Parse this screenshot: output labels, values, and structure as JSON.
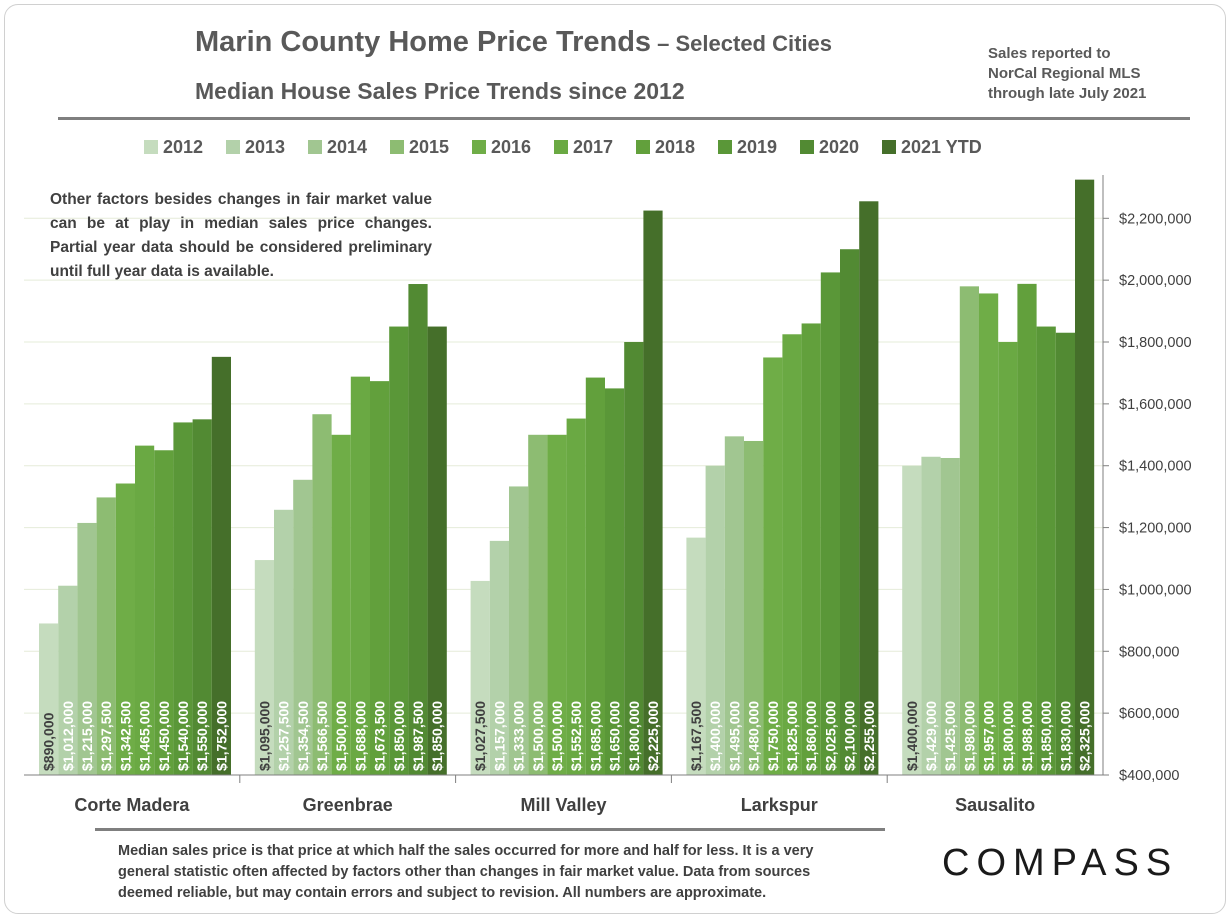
{
  "header": {
    "title_main": "Marin County Home Price Trends",
    "title_sub": " – Selected Cities",
    "subtitle": "Median House Sales Price Trends since 2012"
  },
  "source_note": {
    "lines": [
      "Sales reported to",
      "NorCal Regional MLS",
      "through late July 2021"
    ]
  },
  "annotation": "Other factors besides changes in fair market value can be at play in median sales price changes. Partial year data should be considered preliminary until full year data is available.",
  "footnote": "Median sales price is that price at which half the sales occurred for more and half for less. It is a very general statistic often affected by factors other than changes in fair market value. Data from sources deemed reliable, but may contain errors and subject to revision. All numbers are approximate.",
  "logo": "COMPASS",
  "colors": {
    "series": [
      "#c5dcbe",
      "#b3d1aa",
      "#a1c691",
      "#8dbc72",
      "#6fad47",
      "#6aa943",
      "#62a03c",
      "#5a9738",
      "#528a33",
      "#456f2a"
    ],
    "text": "#404040",
    "axis": "#7f7f7f",
    "grid": "#e5ecd9"
  },
  "chart_data": {
    "type": "bar",
    "categories": [
      "Corte Madera",
      "Greenbrae",
      "Mill Valley",
      "Larkspur",
      "Sausalito"
    ],
    "series": [
      {
        "name": "2012",
        "values": [
          890000,
          1095000,
          1027500,
          1167500,
          1400000
        ]
      },
      {
        "name": "2013",
        "values": [
          1012000,
          1257500,
          1157000,
          1400000,
          1429000
        ]
      },
      {
        "name": "2014",
        "values": [
          1215000,
          1354500,
          1333000,
          1495000,
          1425000
        ]
      },
      {
        "name": "2015",
        "values": [
          1297500,
          1566500,
          1500000,
          1480000,
          1980000
        ]
      },
      {
        "name": "2016",
        "values": [
          1342500,
          1500000,
          1500000,
          1750000,
          1957000
        ]
      },
      {
        "name": "2017",
        "values": [
          1465000,
          1688000,
          1552500,
          1825000,
          1800000
        ]
      },
      {
        "name": "2018",
        "values": [
          1450000,
          1673500,
          1685000,
          1860000,
          1988000
        ]
      },
      {
        "name": "2019",
        "values": [
          1540000,
          1850000,
          1650000,
          2025000,
          1850000
        ]
      },
      {
        "name": "2020",
        "values": [
          1550000,
          1987500,
          1800000,
          2100000,
          1830000
        ]
      },
      {
        "name": "2021 YTD",
        "values": [
          1752000,
          1850000,
          2225000,
          2255000,
          2325000
        ]
      }
    ],
    "data_labels": [
      [
        "$890,000",
        "$1,012,000",
        "$1,215,000",
        "$1,297,500",
        "$1,342,500",
        "$1,465,000",
        "$1,450,000",
        "$1,540,000",
        "$1,550,000",
        "$1,752,000"
      ],
      [
        "$1,095,000",
        "$1,257,500",
        "$1,354,500",
        "$1,566,500",
        "$1,500,000",
        "$1,688,000",
        "$1,673,500",
        "$1,850,000",
        "$1,987,500",
        "$1,850,000"
      ],
      [
        "$1,027,500",
        "$1,157,000",
        "$1,333,000",
        "$1,500,000",
        "$1,500,000",
        "$1,552,500",
        "$1,685,000",
        "$1,650,000",
        "$1,800,000",
        "$2,225,000"
      ],
      [
        "$1,167,500",
        "$1,400,000",
        "$1,495,000",
        "$1,480,000",
        "$1,750,000",
        "$1,825,000",
        "$1,860,000",
        "$2,025,000",
        "$2,100,000",
        "$2,255,000"
      ],
      [
        "$1,400,000",
        "$1,429,000",
        "$1,425,000",
        "$1,980,000",
        "$1,957,000",
        "$1,800,000",
        "$1,988,000",
        "$1,850,000",
        "$1,830,000",
        "$2,325,000"
      ]
    ],
    "y_ticks": [
      400000,
      600000,
      800000,
      1000000,
      1200000,
      1400000,
      1600000,
      1800000,
      2000000,
      2200000
    ],
    "y_tick_labels": [
      "$400,000",
      "$600,000",
      "$800,000",
      "$1,000,000",
      "$1,200,000",
      "$1,400,000",
      "$1,600,000",
      "$1,800,000",
      "$2,000,000",
      "$2,200,000"
    ],
    "ylim": [
      400000,
      2340000
    ],
    "y_axis_side": "right",
    "legend": "top",
    "grid": true
  }
}
